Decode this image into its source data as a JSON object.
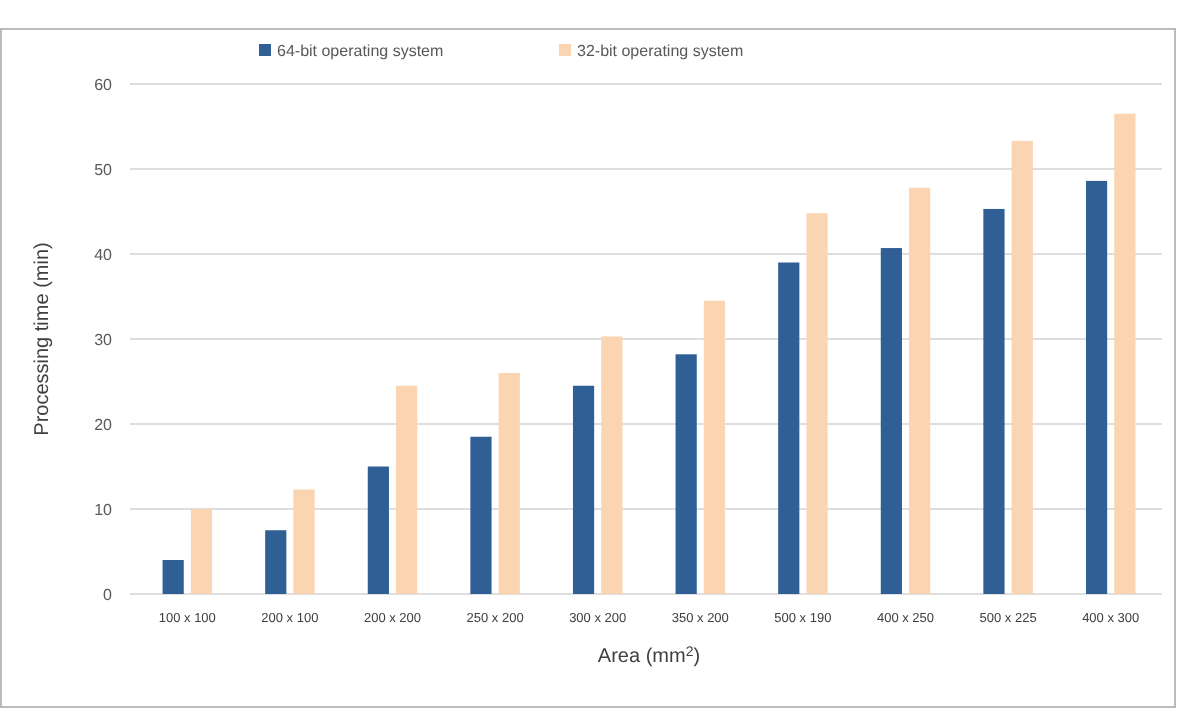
{
  "chart_data": {
    "type": "bar",
    "xlabel": "Area (mm$^{2}$)",
    "ylabel": "Processing time (min)",
    "categories": [
      "100 x 100",
      "200 x 100",
      "200 x 200",
      "250 x 200",
      "300 x 200",
      "350 x 200",
      "500 x 190",
      "400 x 250",
      "500 x 225",
      "400 x 300"
    ],
    "series": [
      {
        "name": "64-bit operating system",
        "color": "#305f96",
        "values": [
          4,
          7.5,
          15,
          18.5,
          24.5,
          28.2,
          39,
          40.7,
          45.3,
          48.6
        ]
      },
      {
        "name": "32-bit operating system",
        "color": "#fbd4b2",
        "values": [
          10,
          12.3,
          24.5,
          26,
          30.3,
          34.5,
          44.8,
          47.8,
          53.3,
          56.5
        ]
      }
    ],
    "ylim": [
      0,
      60
    ],
    "yticks": [
      0,
      10,
      20,
      30,
      40,
      50,
      60
    ],
    "grid": "y",
    "legend": "top"
  }
}
